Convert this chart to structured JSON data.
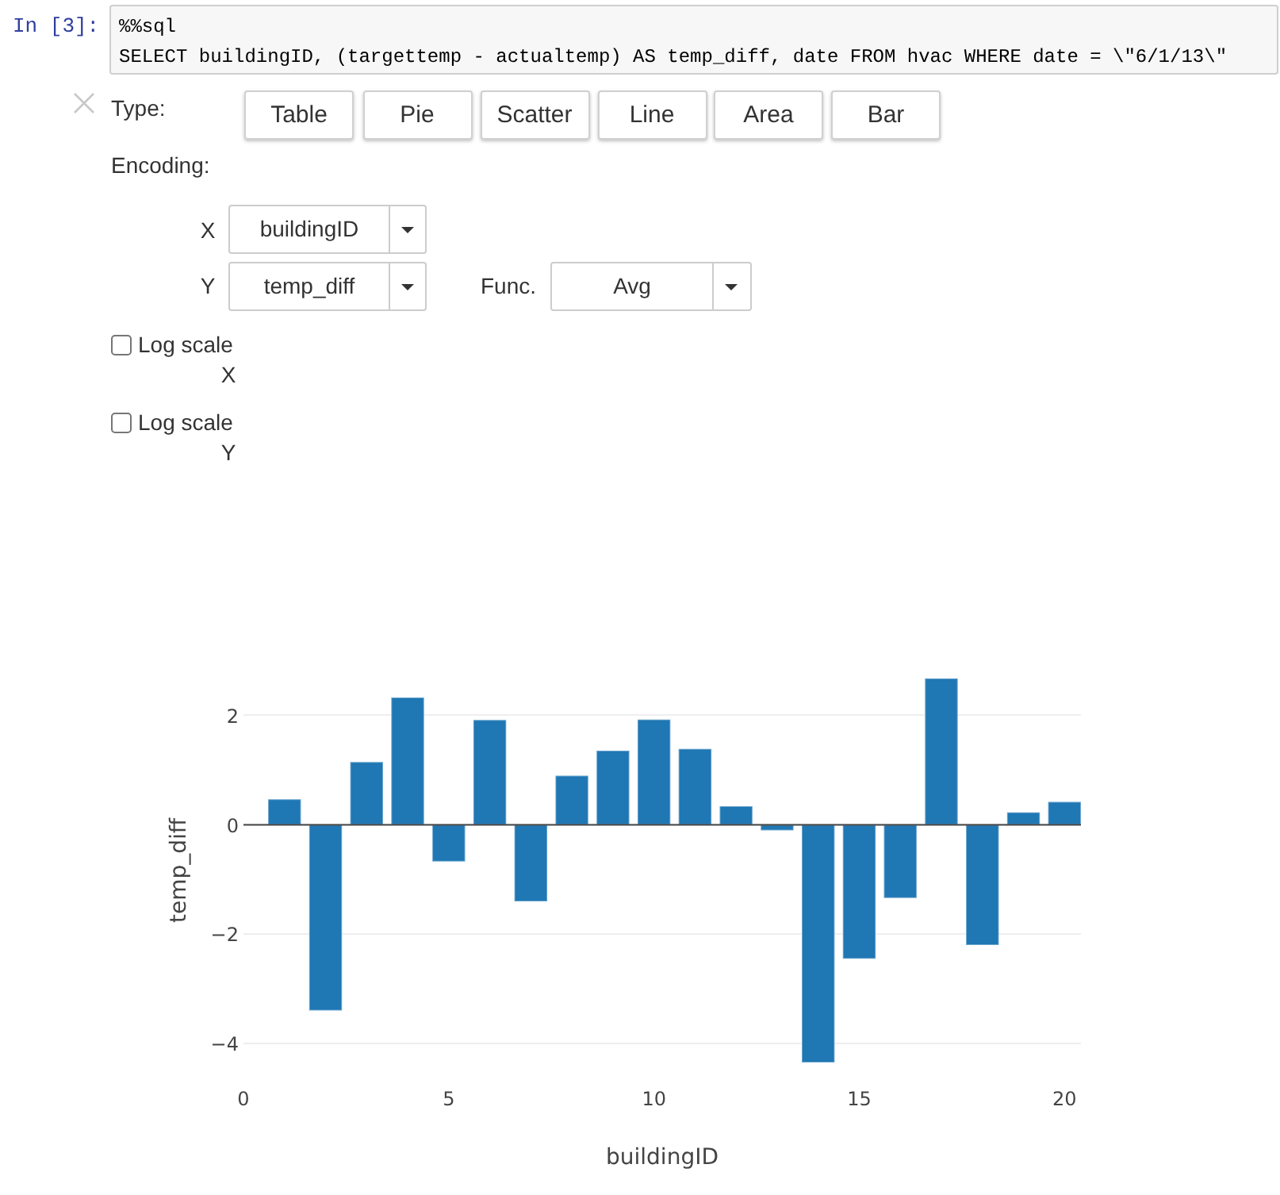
{
  "chart_data": {
    "type": "bar",
    "xlabel": "buildingID",
    "ylabel": "temp_diff",
    "x": [
      1,
      2,
      3,
      4,
      5,
      6,
      7,
      8,
      9,
      10,
      11,
      12,
      13,
      14,
      15,
      16,
      17,
      18,
      19,
      20
    ],
    "values": [
      0.47,
      -3.4,
      1.15,
      2.33,
      -0.67,
      1.92,
      -1.4,
      0.9,
      1.36,
      1.93,
      1.39,
      0.34,
      -0.1,
      -4.35,
      -2.45,
      -1.34,
      2.68,
      -2.2,
      0.23,
      0.42
    ],
    "color": "#1f77b4",
    "xlim": [
      0,
      20.4
    ],
    "xticks": [
      0,
      5,
      10,
      15,
      20
    ],
    "ylim": [
      -4.35,
      2.68
    ],
    "yticks": [
      {
        "value": -4,
        "label": "−4"
      },
      {
        "value": -2,
        "label": "−2"
      },
      0,
      2
    ],
    "grid": "y",
    "ref_lines": [
      {
        "axis": "y",
        "value": 0,
        "color": "#444444"
      }
    ],
    "annotations": [
      "In [3]:",
      "%%sql",
      "SELECT buildingID, (targettemp - actualtemp) AS temp_diff, date FROM hvac WHERE date = \\\"6/1/13\\\"",
      "Type:",
      "Table",
      "Pie",
      "Scatter",
      "Line",
      "Area",
      "Bar",
      "Encoding:",
      "X",
      "buildingID",
      "Y",
      "temp_diff",
      "Func.",
      "Avg",
      "Log scale",
      "X",
      "Log scale",
      "Y"
    ]
  }
}
